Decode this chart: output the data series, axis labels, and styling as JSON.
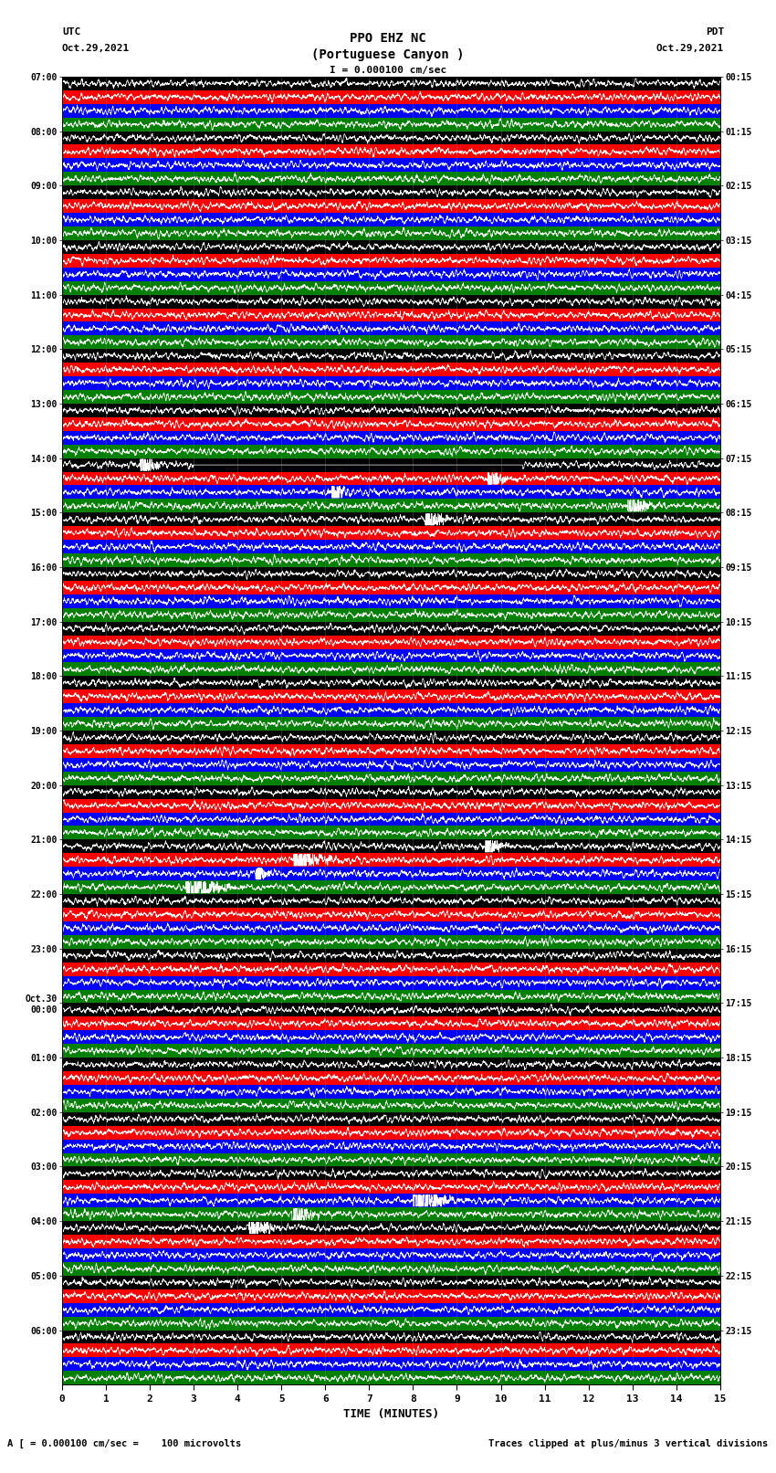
{
  "title_line1": "PPO EHZ NC",
  "title_line2": "(Portuguese Canyon )",
  "scale_label": "I = 0.000100 cm/sec",
  "left_label_top": "UTC",
  "left_label_date": "Oct.29,2021",
  "right_label_top": "PDT",
  "right_label_date": "Oct.29,2021",
  "bottom_label": "TIME (MINUTES)",
  "footer_left": "A [ = 0.000100 cm/sec =    100 microvolts",
  "footer_right": "Traces clipped at plus/minus 3 vertical divisions",
  "utc_labels": [
    "07:00",
    "08:00",
    "09:00",
    "10:00",
    "11:00",
    "12:00",
    "13:00",
    "14:00",
    "15:00",
    "16:00",
    "17:00",
    "18:00",
    "19:00",
    "20:00",
    "21:00",
    "22:00",
    "23:00",
    "Oct.30\n00:00",
    "01:00",
    "02:00",
    "03:00",
    "04:00",
    "05:00",
    "06:00"
  ],
  "pdt_labels": [
    "00:15",
    "01:15",
    "02:15",
    "03:15",
    "04:15",
    "05:15",
    "06:15",
    "07:15",
    "08:15",
    "09:15",
    "10:15",
    "11:15",
    "12:15",
    "13:15",
    "14:15",
    "15:15",
    "16:15",
    "17:15",
    "18:15",
    "19:15",
    "20:15",
    "21:15",
    "22:15",
    "23:15"
  ],
  "band_colors": [
    "black",
    "red",
    "blue",
    "green"
  ],
  "signal_color": "white",
  "bg_color": "white",
  "amplitude_scale": 0.42,
  "n_hours": 24,
  "bands_per_hour": 4,
  "n_pts": 3000
}
